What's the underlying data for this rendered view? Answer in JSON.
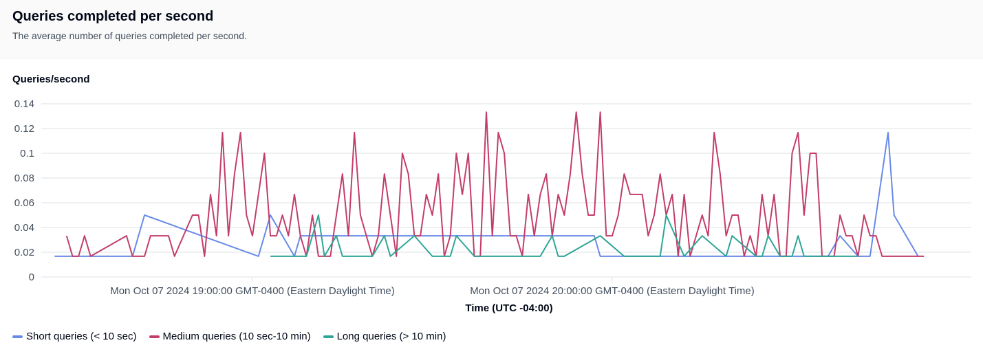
{
  "header": {
    "title": "Queries completed per second",
    "subtitle": "The average number of queries completed per second."
  },
  "chart_data": {
    "type": "line",
    "title": "Queries completed per second",
    "subtitle": "The average number of queries completed per second.",
    "ylabel": "Queries/second",
    "xlabel": "Time (UTC -04:00)",
    "ylim": [
      0,
      0.14
    ],
    "yticks": [
      "0.14",
      "0.12",
      "0.1",
      "0.08",
      "0.06",
      "0.04",
      "0.02",
      "0"
    ],
    "ytick_values": [
      0.14,
      0.12,
      0.1,
      0.08,
      0.06,
      0.04,
      0.02,
      0
    ],
    "xticks": [
      {
        "time": "19:00",
        "label": "Mon Oct 07 2024 19:00:00 GMT-0400 (Eastern Daylight Time)"
      },
      {
        "time": "20:00",
        "label": "Mon Oct 07 2024 20:00:00 GMT-0400 (Eastern Daylight Time)"
      }
    ],
    "grid": true,
    "legend_position": "bottom-left",
    "series": [
      {
        "name": "Short queries (< 10 sec)",
        "color": "#688ae8",
        "points": [
          [
            "18:27",
            0.0167
          ],
          [
            "18:40",
            0.0167
          ],
          [
            "18:42",
            0.05
          ],
          [
            "19:01",
            0.0167
          ],
          [
            "19:03",
            0.05
          ],
          [
            "19:07",
            0.0167
          ],
          [
            "19:08",
            0.0333
          ],
          [
            "19:57",
            0.0333
          ],
          [
            "19:58",
            0.0167
          ],
          [
            "20:36",
            0.0167
          ],
          [
            "20:38",
            0.0333
          ],
          [
            "20:41",
            0.0167
          ],
          [
            "20:43",
            0.0167
          ],
          [
            "20:46",
            0.1167
          ],
          [
            "20:47",
            0.05
          ],
          [
            "20:51",
            0.0167
          ]
        ]
      },
      {
        "name": "Medium queries (10 sec-10 min)",
        "color": "#c33d69",
        "points": [
          [
            "18:29",
            0.0333
          ],
          [
            "18:30",
            0.0167
          ],
          [
            "18:31",
            0.0167
          ],
          [
            "18:32",
            0.0333
          ],
          [
            "18:33",
            0.0167
          ],
          [
            "18:39",
            0.0333
          ],
          [
            "18:40",
            0.0167
          ],
          [
            "18:42",
            0.0167
          ],
          [
            "18:43",
            0.0333
          ],
          [
            "18:46",
            0.0333
          ],
          [
            "18:47",
            0.0167
          ],
          [
            "18:50",
            0.05
          ],
          [
            "18:51",
            0.05
          ],
          [
            "18:52",
            0.0167
          ],
          [
            "18:53",
            0.0667
          ],
          [
            "18:54",
            0.0333
          ],
          [
            "18:55",
            0.1167
          ],
          [
            "18:56",
            0.0333
          ],
          [
            "18:57",
            0.0833
          ],
          [
            "18:58",
            0.1167
          ],
          [
            "18:59",
            0.05
          ],
          [
            "19:00",
            0.0333
          ],
          [
            "19:02",
            0.1
          ],
          [
            "19:03",
            0.0333
          ],
          [
            "19:04",
            0.0333
          ],
          [
            "19:05",
            0.05
          ],
          [
            "19:06",
            0.0333
          ],
          [
            "19:07",
            0.0667
          ],
          [
            "19:08",
            0.0333
          ],
          [
            "19:09",
            0.0167
          ],
          [
            "19:10",
            0.05
          ],
          [
            "19:11",
            0.0167
          ],
          [
            "19:12",
            0.0167
          ],
          [
            "19:13",
            0.0167
          ],
          [
            "19:14",
            0.05
          ],
          [
            "19:15",
            0.0833
          ],
          [
            "19:16",
            0.0333
          ],
          [
            "19:17",
            0.1167
          ],
          [
            "19:18",
            0.05
          ],
          [
            "19:19",
            0.0333
          ],
          [
            "19:20",
            0.0167
          ],
          [
            "19:21",
            0.0333
          ],
          [
            "19:22",
            0.0833
          ],
          [
            "19:23",
            0.05
          ],
          [
            "19:24",
            0.0167
          ],
          [
            "19:25",
            0.1
          ],
          [
            "19:26",
            0.0833
          ],
          [
            "19:27",
            0.0333
          ],
          [
            "19:28",
            0.0333
          ],
          [
            "19:29",
            0.0667
          ],
          [
            "19:30",
            0.05
          ],
          [
            "19:31",
            0.0833
          ],
          [
            "19:32",
            0.0167
          ],
          [
            "19:33",
            0.0333
          ],
          [
            "19:34",
            0.1
          ],
          [
            "19:35",
            0.0667
          ],
          [
            "19:36",
            0.1
          ],
          [
            "19:37",
            0.0167
          ],
          [
            "19:38",
            0.0167
          ],
          [
            "19:39",
            0.1333
          ],
          [
            "19:40",
            0.0333
          ],
          [
            "19:41",
            0.1167
          ],
          [
            "19:42",
            0.1
          ],
          [
            "19:43",
            0.0333
          ],
          [
            "19:44",
            0.0333
          ],
          [
            "19:45",
            0.0167
          ],
          [
            "19:46",
            0.0667
          ],
          [
            "19:47",
            0.0333
          ],
          [
            "19:48",
            0.0667
          ],
          [
            "19:49",
            0.0833
          ],
          [
            "19:50",
            0.0333
          ],
          [
            "19:51",
            0.0667
          ],
          [
            "19:52",
            0.05
          ],
          [
            "19:53",
            0.0833
          ],
          [
            "19:54",
            0.1333
          ],
          [
            "19:55",
            0.0833
          ],
          [
            "19:56",
            0.05
          ],
          [
            "19:57",
            0.05
          ],
          [
            "19:58",
            0.1333
          ],
          [
            "19:59",
            0.0333
          ],
          [
            "20:00",
            0.0333
          ],
          [
            "20:01",
            0.05
          ],
          [
            "20:02",
            0.0833
          ],
          [
            "20:03",
            0.0667
          ],
          [
            "20:04",
            0.0667
          ],
          [
            "20:05",
            0.0667
          ],
          [
            "20:06",
            0.0333
          ],
          [
            "20:07",
            0.05
          ],
          [
            "20:08",
            0.0833
          ],
          [
            "20:09",
            0.05
          ],
          [
            "20:10",
            0.0667
          ],
          [
            "20:11",
            0.0167
          ],
          [
            "20:12",
            0.0667
          ],
          [
            "20:13",
            0.0167
          ],
          [
            "20:14",
            0.0333
          ],
          [
            "20:15",
            0.05
          ],
          [
            "20:16",
            0.0333
          ],
          [
            "20:17",
            0.1167
          ],
          [
            "20:18",
            0.0833
          ],
          [
            "20:19",
            0.0333
          ],
          [
            "20:20",
            0.05
          ],
          [
            "20:21",
            0.05
          ],
          [
            "20:22",
            0.0167
          ],
          [
            "20:23",
            0.0333
          ],
          [
            "20:24",
            0.0167
          ],
          [
            "20:25",
            0.0667
          ],
          [
            "20:26",
            0.0333
          ],
          [
            "20:27",
            0.0667
          ],
          [
            "20:28",
            0.0167
          ],
          [
            "20:29",
            0.0167
          ],
          [
            "20:30",
            0.1
          ],
          [
            "20:31",
            0.1167
          ],
          [
            "20:32",
            0.05
          ],
          [
            "20:33",
            0.1
          ],
          [
            "20:34",
            0.1
          ],
          [
            "20:35",
            0.0167
          ],
          [
            "20:36",
            0.0167
          ],
          [
            "20:37",
            0.0167
          ],
          [
            "20:38",
            0.05
          ],
          [
            "20:39",
            0.0333
          ],
          [
            "20:40",
            0.0333
          ],
          [
            "20:41",
            0.0167
          ],
          [
            "20:42",
            0.05
          ],
          [
            "20:43",
            0.0333
          ],
          [
            "20:44",
            0.0333
          ],
          [
            "20:45",
            0.0167
          ],
          [
            "20:52",
            0.0167
          ]
        ]
      },
      {
        "name": "Long queries (> 10 min)",
        "color": "#2ea597",
        "points": [
          [
            "19:03",
            0.0167
          ],
          [
            "19:09",
            0.0167
          ],
          [
            "19:11",
            0.05
          ],
          [
            "19:12",
            0.0167
          ],
          [
            "19:14",
            0.0333
          ],
          [
            "19:15",
            0.0167
          ],
          [
            "19:20",
            0.0167
          ],
          [
            "19:22",
            0.0333
          ],
          [
            "19:23",
            0.0167
          ],
          [
            "19:27",
            0.0333
          ],
          [
            "19:30",
            0.0167
          ],
          [
            "19:33",
            0.0167
          ],
          [
            "19:34",
            0.0333
          ],
          [
            "19:37",
            0.0167
          ],
          [
            "19:48",
            0.0167
          ],
          [
            "19:50",
            0.0333
          ],
          [
            "19:51",
            0.0167
          ],
          [
            "19:52",
            0.0167
          ],
          [
            "19:58",
            0.0333
          ],
          [
            "20:02",
            0.0167
          ],
          [
            "20:08",
            0.0167
          ],
          [
            "20:09",
            0.05
          ],
          [
            "20:12",
            0.0167
          ],
          [
            "20:15",
            0.0333
          ],
          [
            "20:19",
            0.0167
          ],
          [
            "20:20",
            0.0333
          ],
          [
            "20:24",
            0.0167
          ],
          [
            "20:25",
            0.0167
          ],
          [
            "20:26",
            0.0333
          ],
          [
            "20:28",
            0.0167
          ],
          [
            "20:30",
            0.0167
          ],
          [
            "20:31",
            0.0333
          ],
          [
            "20:32",
            0.0167
          ],
          [
            "20:41",
            0.0167
          ]
        ]
      }
    ]
  }
}
